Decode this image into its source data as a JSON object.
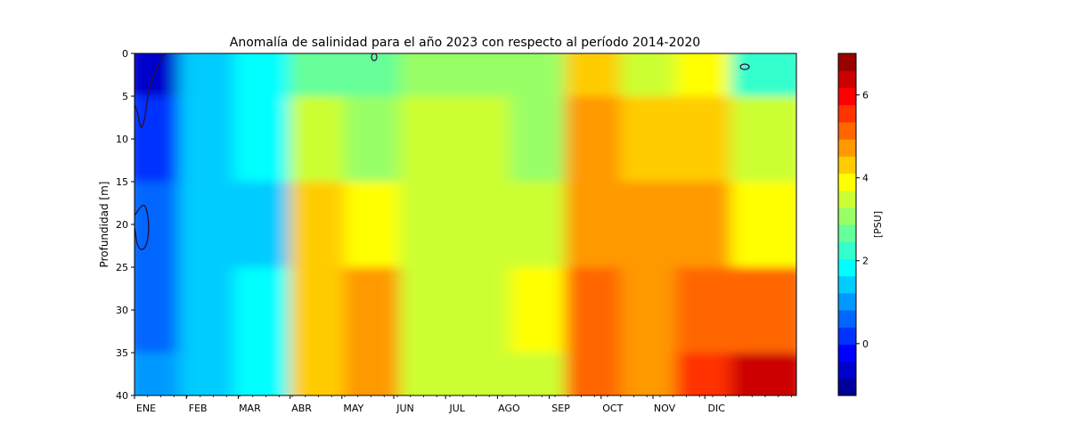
{
  "chart_data": {
    "type": "heatmap",
    "title": "Anomalía de salinidad para el año 2023 con respecto al período 2014-2020",
    "ylabel": "Profundidad [m]",
    "xlabel": "",
    "x_ticks": [
      "ENE",
      "FEB",
      "MAR",
      "ABR",
      "MAY",
      "JUN",
      "JUL",
      "AGO",
      "SEP",
      "OCT",
      "NOV",
      "DIC"
    ],
    "y_ticks": [
      0,
      5,
      10,
      15,
      20,
      25,
      30,
      35,
      40
    ],
    "ylim": [
      40,
      0
    ],
    "colorbar": {
      "label": "[PSU]",
      "ticks": [
        0,
        2,
        4,
        6
      ],
      "range": [
        -1.25,
        7.0
      ],
      "levels": 20,
      "colormap": "jet"
    },
    "contour_level": -0.5,
    "months": [
      "ENE",
      "FEB",
      "MAR",
      "ABR",
      "MAY",
      "JUN",
      "JUL",
      "AGO",
      "SEP",
      "OCT",
      "NOV",
      "DIC"
    ],
    "depths_m": [
      0,
      10,
      20,
      30,
      40
    ],
    "monthly_anomaly_psu": [
      [
        -0.5,
        0.3,
        0.8,
        0.5,
        1.0
      ],
      [
        1.6,
        1.5,
        1.5,
        1.4,
        1.5
      ],
      [
        1.8,
        1.8,
        1.6,
        1.7,
        1.9
      ],
      [
        2.5,
        3.3,
        4.2,
        4.3,
        4.2
      ],
      [
        2.6,
        3.2,
        3.9,
        4.6,
        4.7
      ],
      [
        2.9,
        3.5,
        3.6,
        3.6,
        3.6
      ],
      [
        3.0,
        3.4,
        3.4,
        3.5,
        3.6
      ],
      [
        3.1,
        3.2,
        3.3,
        3.9,
        3.5
      ],
      [
        4.2,
        4.7,
        4.9,
        5.2,
        5.1
      ],
      [
        3.6,
        4.4,
        4.6,
        4.8,
        4.6
      ],
      [
        3.9,
        4.4,
        4.7,
        5.3,
        5.6
      ],
      [
        2.4,
        3.5,
        4.1,
        5.0,
        6.2
      ]
    ]
  }
}
